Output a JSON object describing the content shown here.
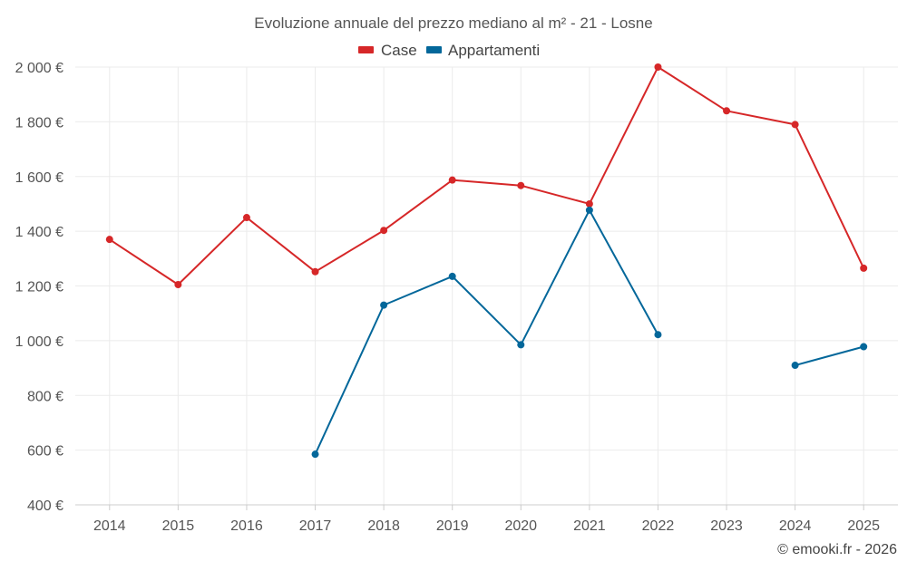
{
  "chart_data": {
    "type": "line",
    "title": "Evoluzione annuale del prezzo mediano al m² - 21 - Losne",
    "categories": [
      "2014",
      "2015",
      "2016",
      "2017",
      "2018",
      "2019",
      "2020",
      "2021",
      "2022",
      "2023",
      "2024",
      "2025"
    ],
    "series": [
      {
        "name": "Case",
        "color": "#d62728",
        "values": [
          1370,
          1205,
          1450,
          1252,
          1403,
          1587,
          1567,
          1500,
          2000,
          1840,
          1790,
          1265
        ]
      },
      {
        "name": "Appartamenti",
        "color": "#03679a",
        "values": [
          null,
          null,
          null,
          585,
          1130,
          1235,
          985,
          1477,
          1022,
          null,
          910,
          978
        ]
      }
    ],
    "ylim": [
      400,
      2000
    ],
    "yticks": [
      400,
      600,
      800,
      1000,
      1200,
      1400,
      1600,
      1800,
      2000
    ],
    "ytick_labels": [
      "400 €",
      "600 €",
      "800 €",
      "1 000 €",
      "1 200 €",
      "1 400 €",
      "1 600 €",
      "1 800 €",
      "2 000 €"
    ],
    "xlabel": "",
    "ylabel": "",
    "grid": true,
    "legend": "top-center"
  },
  "credit": "© emooki.fr - 2026"
}
